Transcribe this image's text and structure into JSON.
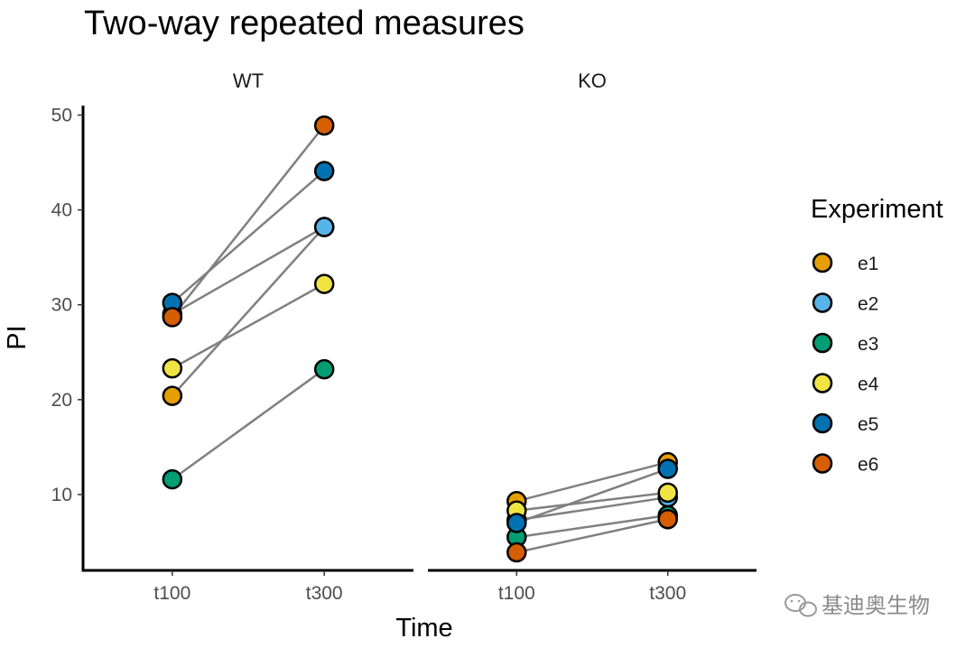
{
  "chart_data": {
    "type": "scatter",
    "subtype": "paired-points-faceted",
    "title": "Two-way repeated measures",
    "xlabel": "Time",
    "ylabel": "PI",
    "ylim": [
      2,
      51
    ],
    "yticks": [
      10,
      20,
      30,
      40,
      50
    ],
    "categories": [
      "t100",
      "t300"
    ],
    "facets": [
      {
        "name": "WT",
        "series": [
          {
            "name": "e1",
            "values": [
              20.4,
              38.2
            ]
          },
          {
            "name": "e2",
            "values": [
              29.0,
              38.2
            ]
          },
          {
            "name": "e3",
            "values": [
              11.6,
              23.2
            ]
          },
          {
            "name": "e4",
            "values": [
              23.3,
              32.2
            ]
          },
          {
            "name": "e5",
            "values": [
              30.2,
              44.1
            ]
          },
          {
            "name": "e6",
            "values": [
              28.7,
              48.9
            ]
          }
        ]
      },
      {
        "name": "KO",
        "series": [
          {
            "name": "e1",
            "values": [
              9.3,
              13.4
            ]
          },
          {
            "name": "e2",
            "values": [
              7.3,
              9.7
            ]
          },
          {
            "name": "e3",
            "values": [
              5.5,
              7.8
            ]
          },
          {
            "name": "e4",
            "values": [
              8.3,
              10.2
            ]
          },
          {
            "name": "e5",
            "values": [
              7.0,
              12.7
            ]
          },
          {
            "name": "e6",
            "values": [
              3.9,
              7.4
            ]
          }
        ]
      }
    ],
    "legend": {
      "title": "Experiment",
      "position": "right",
      "items": [
        {
          "label": "e1",
          "color": "#E69F00"
        },
        {
          "label": "e2",
          "color": "#56B4E9"
        },
        {
          "label": "e3",
          "color": "#009E73"
        },
        {
          "label": "e4",
          "color": "#F0E442"
        },
        {
          "label": "e5",
          "color": "#0072B2"
        },
        {
          "label": "e6",
          "color": "#D55E00"
        }
      ]
    },
    "line_color": "#808080"
  },
  "watermark": {
    "text": "基迪奥生物",
    "icon": "wechat-icon"
  }
}
